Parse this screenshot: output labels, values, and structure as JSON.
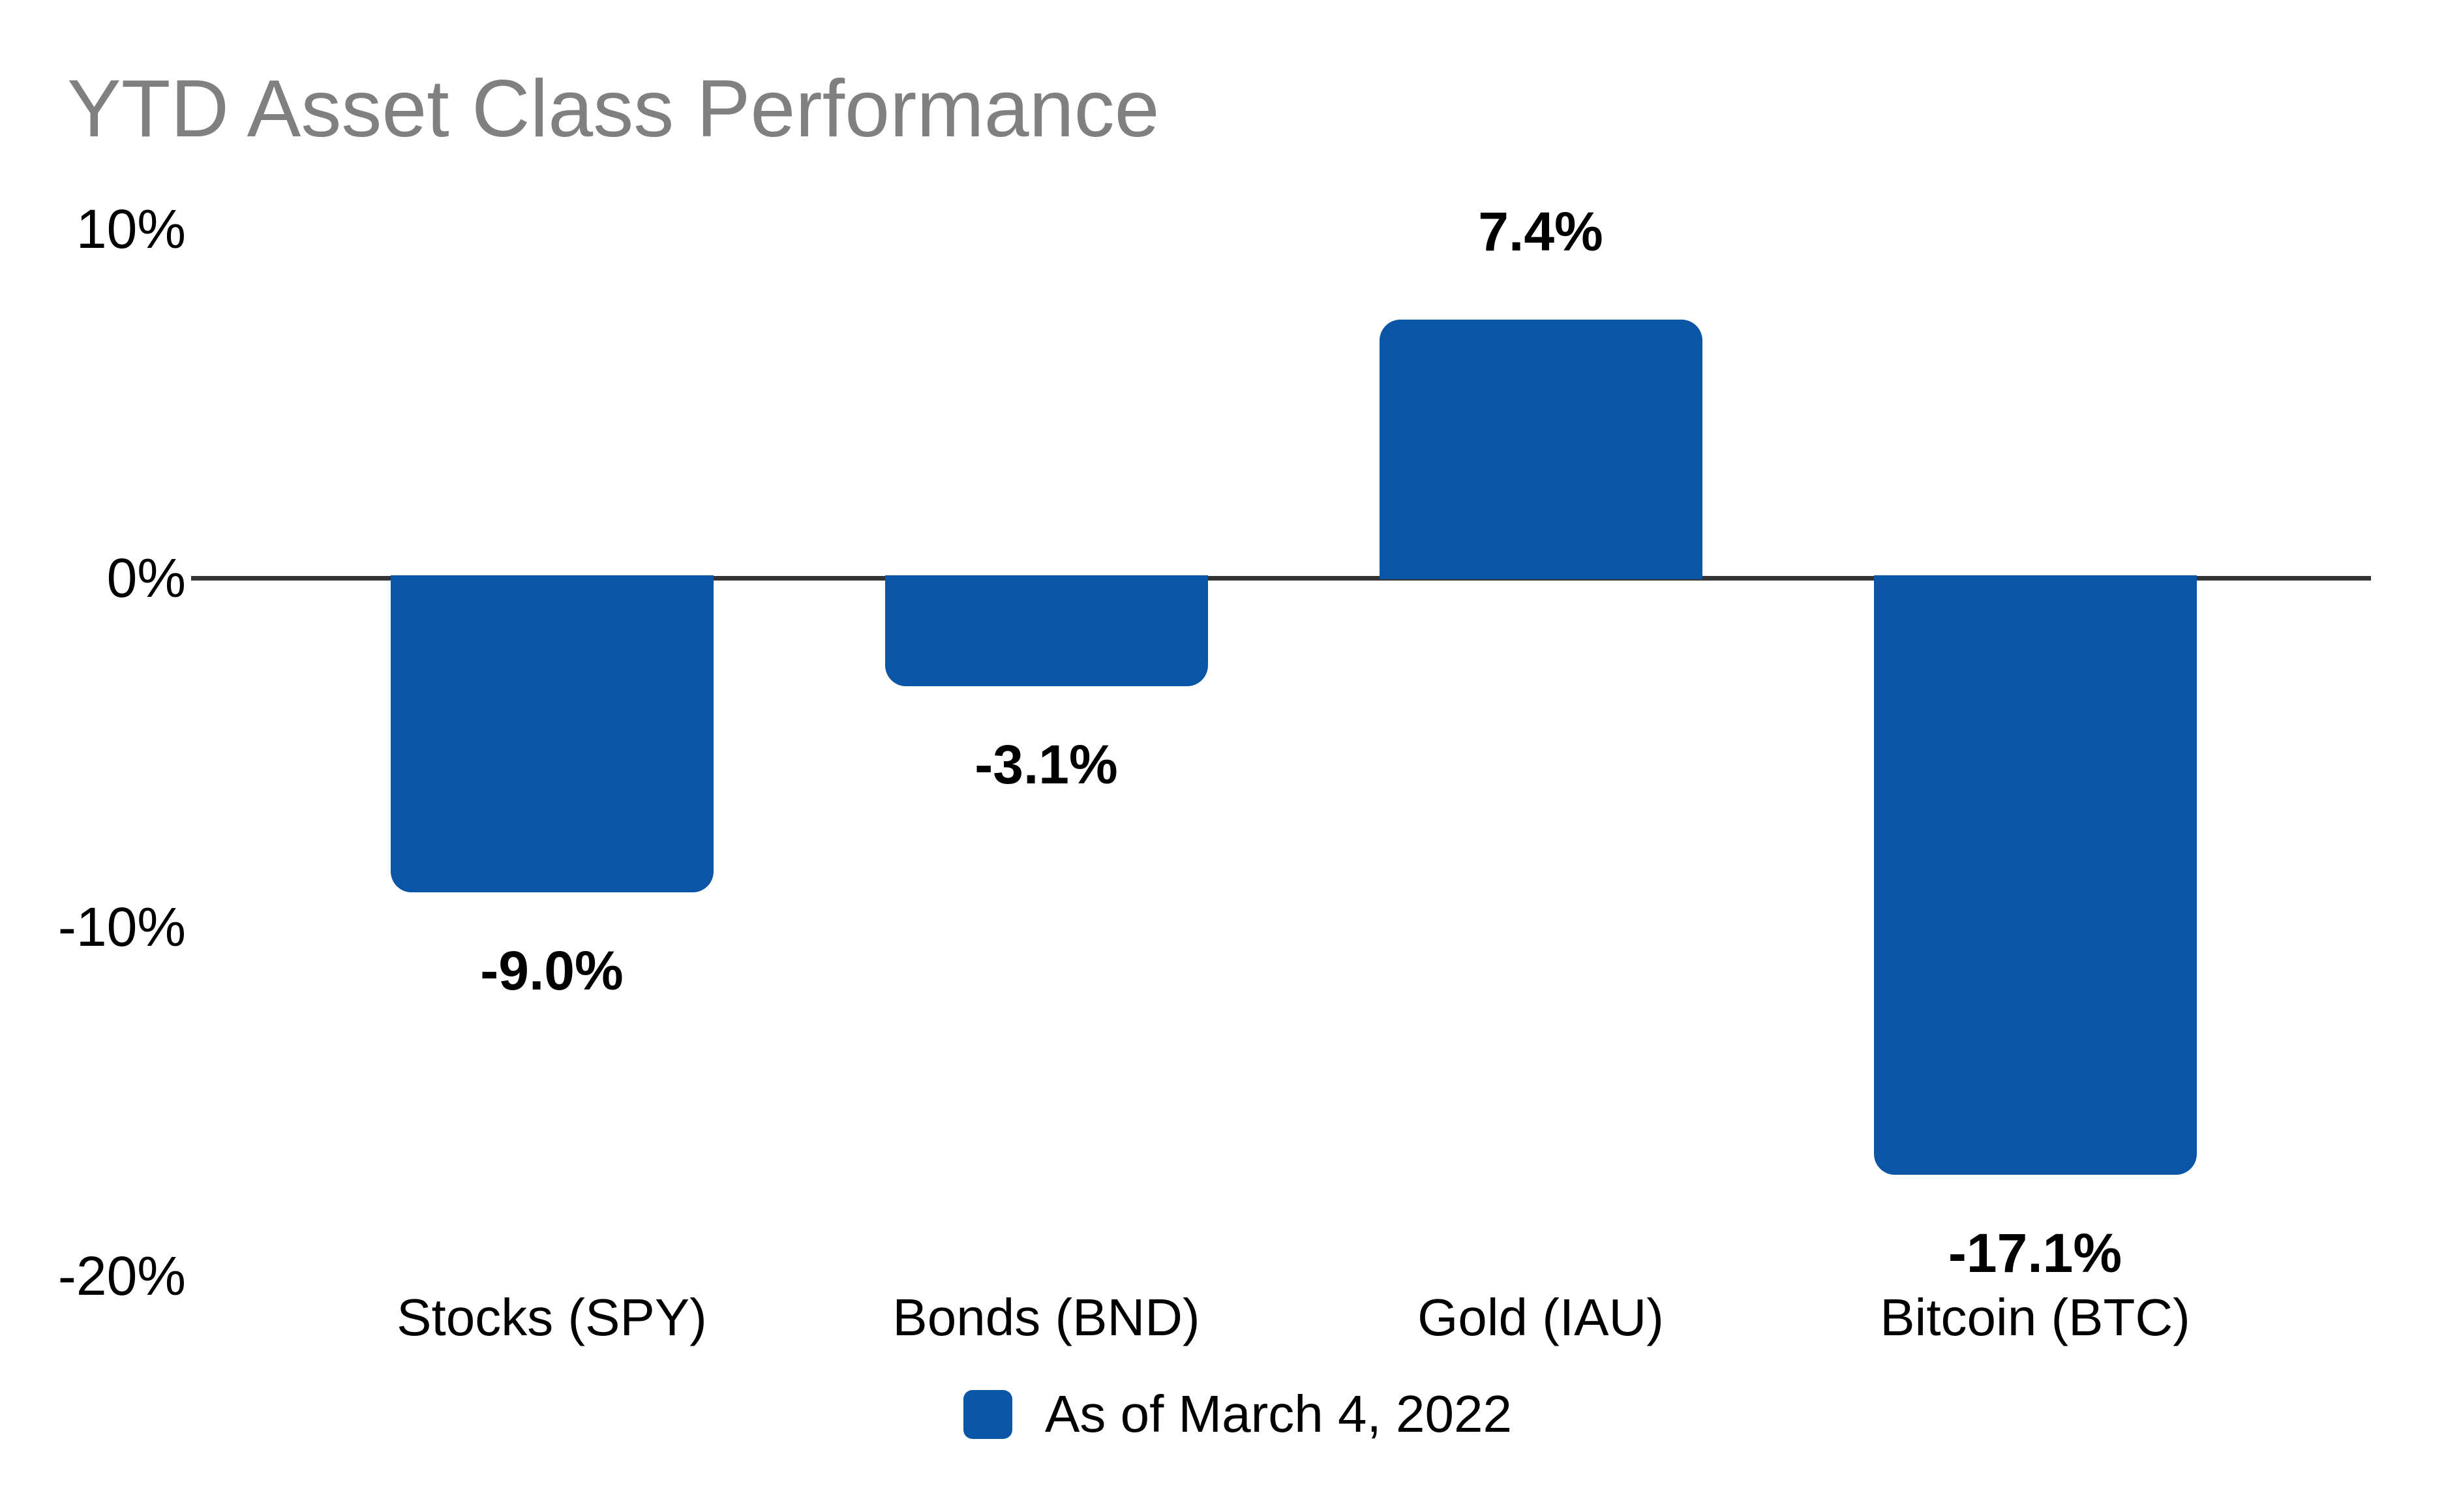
{
  "chart_data": {
    "type": "bar",
    "title": "YTD Asset Class Performance",
    "categories": [
      "Stocks (SPY)",
      "Bonds (BND)",
      "Gold (IAU)",
      "Bitcoin (BTC)"
    ],
    "values": [
      -9.0,
      -3.1,
      7.4,
      -17.1
    ],
    "value_labels": [
      "-9.0%",
      "-3.1%",
      "7.4%",
      "-17.1%"
    ],
    "series_name": "As of March 4, 2022",
    "y_ticks": [
      {
        "label": "10%",
        "value": 10
      },
      {
        "label": "0%",
        "value": 0
      },
      {
        "label": "-10%",
        "value": -10
      },
      {
        "label": "-20%",
        "value": -20
      }
    ],
    "ylim": [
      -20,
      10
    ],
    "grid": false,
    "legend_position": "bottom",
    "zero_baseline": true,
    "colors": {
      "bar": "#0B55A6",
      "axis_line": "#333333",
      "title_text": "#808080",
      "label_text": "#000000",
      "background": "#FFFFFF"
    }
  }
}
